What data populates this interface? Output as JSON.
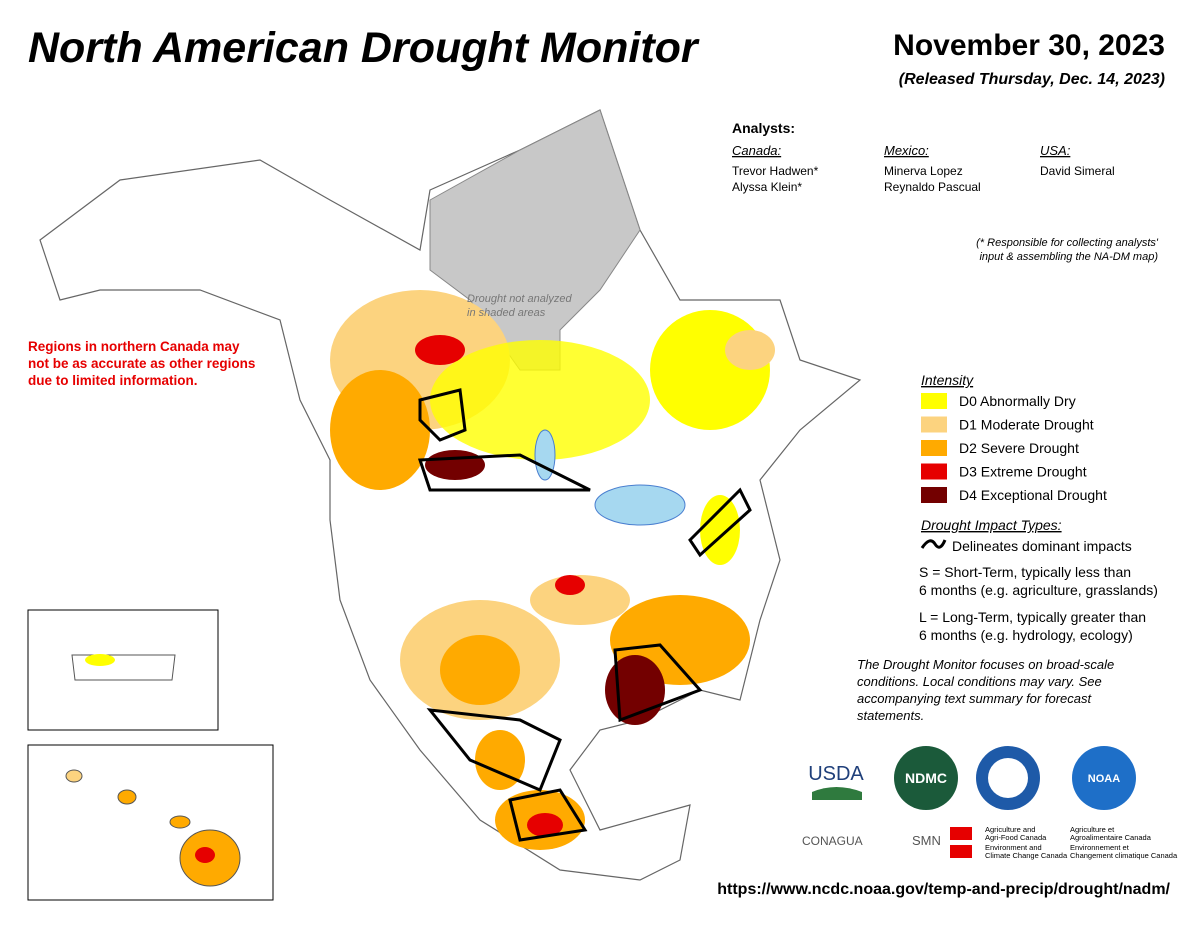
{
  "header": {
    "title": "North American Drought Monitor",
    "date": "November 30, 2023",
    "released": "(Released Thursday, Dec. 14, 2023)"
  },
  "analysts": {
    "heading": "Analysts:",
    "groups": [
      {
        "country": "Canada:",
        "names": [
          "Trevor Hadwen*",
          "Alyssa Klein*"
        ]
      },
      {
        "country": "Mexico:",
        "names": [
          "Minerva Lopez",
          "Reynaldo Pascual"
        ]
      },
      {
        "country": "USA:",
        "names": [
          "David Simeral"
        ]
      }
    ],
    "note": [
      "(* Responsible for collecting analysts'",
      "input & assembling the NA-DM map)"
    ]
  },
  "warning": [
    "Regions in northern Canada may",
    "not be as accurate as other regions",
    "due to limited information."
  ],
  "map_label": [
    "Drought not analyzed",
    "in shaded areas"
  ],
  "legend": {
    "title": "Intensity",
    "items": [
      {
        "label": "D0 Abnormally Dry",
        "color": "#ffff00"
      },
      {
        "label": "D1 Moderate Drought",
        "color": "#fcd37f"
      },
      {
        "label": "D2 Severe Drought",
        "color": "#ffaa00"
      },
      {
        "label": "D3 Extreme Drought",
        "color": "#e60000"
      },
      {
        "label": "D4 Exceptional Drought",
        "color": "#730000"
      }
    ]
  },
  "impacts": {
    "title": "Drought Impact Types:",
    "line": "Delineates dominant impacts",
    "short": [
      "S = Short-Term, typically less than",
      "6 months (e.g. agriculture, grasslands)"
    ],
    "long": [
      "L = Long-Term, typically greater than",
      "6 months (e.g. hydrology, ecology)"
    ]
  },
  "disclaimer": [
    "The Drought Monitor focuses on broad-scale",
    "conditions. Local conditions may vary. See",
    "accompanying text summary for forecast",
    "statements."
  ],
  "logos": {
    "usda": "USDA",
    "ndmc": "NDMC",
    "noaa": "NOAA",
    "conagua": "CONAGUA",
    "smn": "SMN",
    "aafc": [
      "Agriculture and",
      "Agri-Food Canada"
    ],
    "aac": [
      "Agriculture et",
      "Agroalimentaire Canada"
    ],
    "eccc": [
      "Environment and",
      "Climate Change Canada"
    ],
    "ecc": [
      "Environnement et",
      "Changement climatique Canada"
    ]
  },
  "url": "https://www.ncdc.noaa.gov/temp-and-precip/drought/nadm/"
}
